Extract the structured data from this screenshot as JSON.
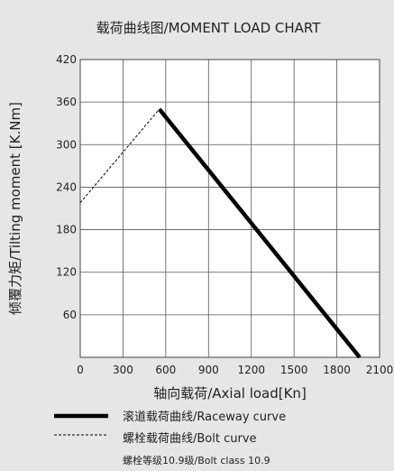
{
  "chart_data": {
    "type": "line",
    "title": "载荷曲线图/MOMENT LOAD CHART",
    "xlabel": "轴向载荷/Axial load[Kn]",
    "ylabel": "倾覆力矩/Tilting moment [K.Nm]",
    "xlim": [
      0,
      2100
    ],
    "ylim": [
      0,
      420
    ],
    "x_ticks": [
      0,
      300,
      600,
      900,
      1200,
      1500,
      1800,
      2100
    ],
    "y_ticks": [
      60,
      120,
      180,
      240,
      300,
      360,
      420
    ],
    "x_tick_labels": [
      "0",
      "300",
      "600",
      "900",
      "1200",
      "1500",
      "1800",
      "2100"
    ],
    "y_tick_labels": [
      "60",
      "120",
      "180",
      "240",
      "300",
      "360",
      "420"
    ],
    "grid": true,
    "series": [
      {
        "name": "滚道载荷曲线/Raceway curve",
        "style": "solid-thick",
        "color": "#000000",
        "points": [
          [
            555,
            350
          ],
          [
            1960,
            0
          ]
        ]
      },
      {
        "name": "螺栓载荷曲线/Bolt curve",
        "style": "dashed",
        "color": "#000000",
        "points": [
          [
            0,
            218
          ],
          [
            555,
            350
          ]
        ]
      }
    ],
    "note": "螺栓等级10.9级/Bolt class 10.9"
  }
}
